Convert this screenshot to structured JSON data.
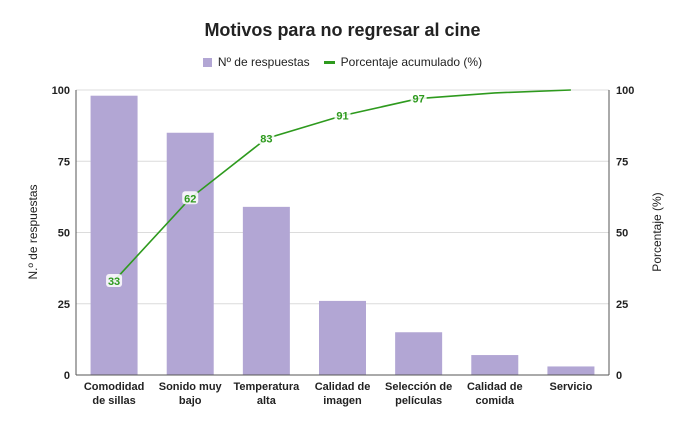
{
  "chart_data": {
    "type": "bar+line",
    "title": "Motivos para no regresar al cine",
    "categories": [
      "Comodidad de sillas",
      "Sonido muy bajo",
      "Temperatura alta",
      "Calidad de imagen",
      "Selección de películas",
      "Calidad de comida",
      "Servicio"
    ],
    "category_lines": [
      [
        "Comodidad",
        "de sillas"
      ],
      [
        "Sonido muy",
        "bajo"
      ],
      [
        "Temperatura",
        "alta"
      ],
      [
        "Calidad de",
        "imagen"
      ],
      [
        "Selección de",
        "películas"
      ],
      [
        "Calidad de",
        "comida"
      ],
      [
        "Servicio"
      ]
    ],
    "series": [
      {
        "name": "Nº de respuestas",
        "type": "bar",
        "axis": "left",
        "color": "#b2a6d4",
        "values": [
          98,
          85,
          59,
          26,
          15,
          7,
          3
        ]
      },
      {
        "name": "Porcentaje acumulado (%)",
        "type": "line",
        "axis": "right",
        "color": "#2e9a1e",
        "values": [
          33,
          62,
          83,
          91,
          97,
          99,
          100
        ],
        "data_labels": [
          "33",
          "62",
          "83",
          "91",
          "97",
          null,
          null
        ]
      }
    ],
    "ylabel": "N.º de respuestas",
    "y2label": "Porcentaje (%)",
    "ylim": [
      0,
      100
    ],
    "y2lim": [
      0,
      100
    ],
    "yticks": [
      0,
      25,
      50,
      75,
      100
    ],
    "y2ticks": [
      0,
      25,
      50,
      75,
      100
    ],
    "grid": true,
    "legend_position": "top"
  },
  "legend": {
    "bar_label": "Nº de respuestas",
    "line_label": "Porcentaje acumulado (%)"
  }
}
